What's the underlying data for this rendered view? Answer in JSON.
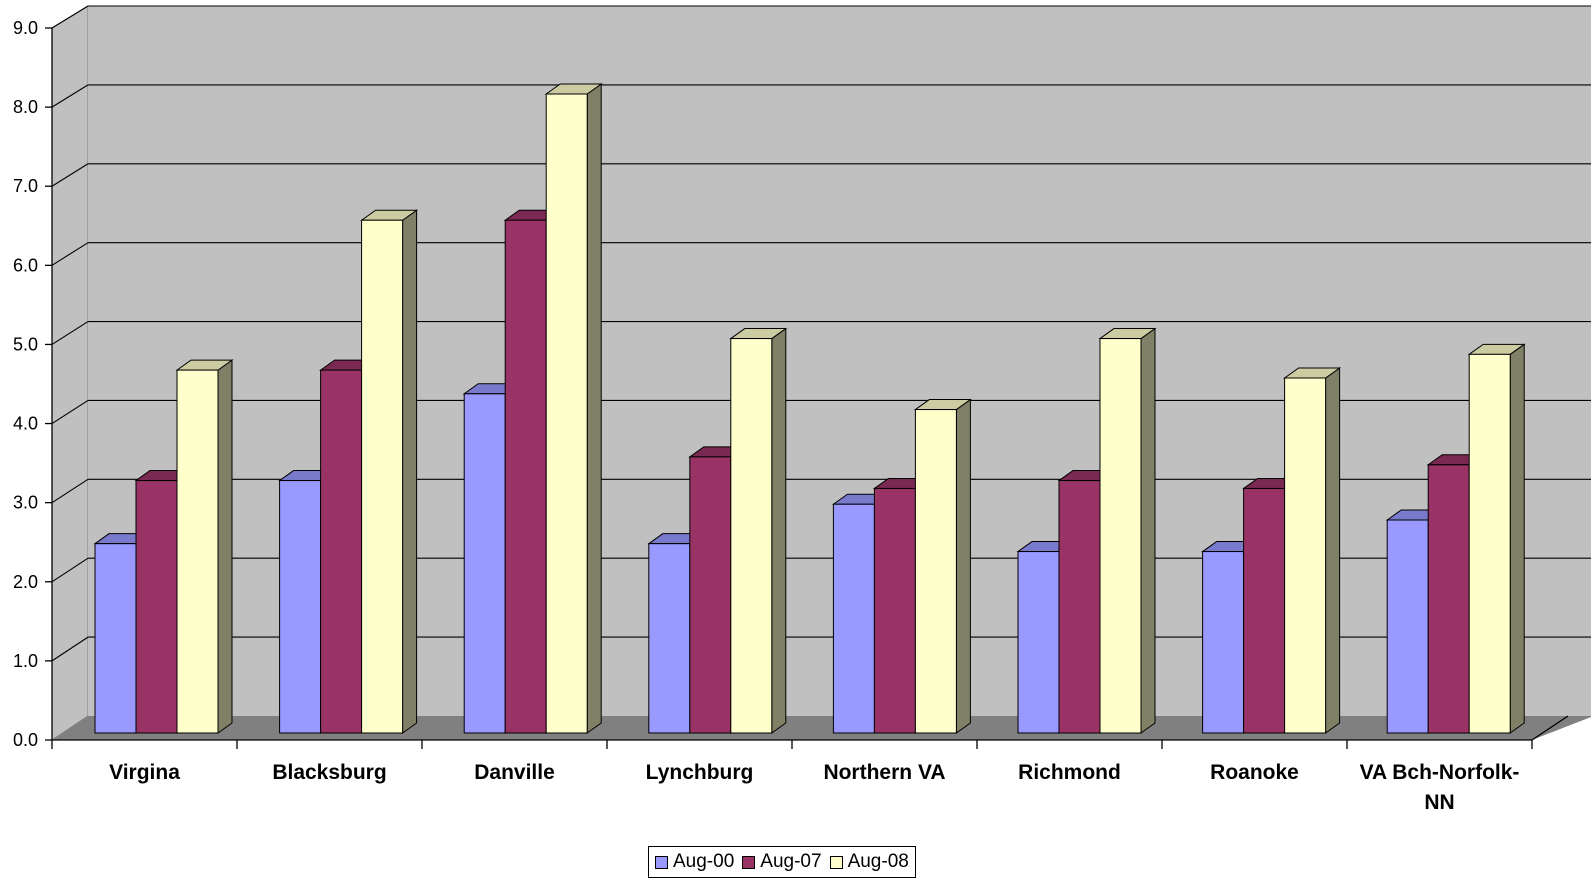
{
  "chart_data": {
    "type": "bar",
    "style": "3d-clustered-column",
    "title": "",
    "xlabel": "",
    "ylabel": "",
    "ylim": [
      0,
      9
    ],
    "yticks": [
      "0.0",
      "1.0",
      "2.0",
      "3.0",
      "4.0",
      "5.0",
      "6.0",
      "7.0",
      "8.0",
      "9.0"
    ],
    "grid": true,
    "legend_position": "bottom",
    "categories": [
      "Virgina",
      "Blacksburg",
      "Danville",
      "Lynchburg",
      "Northern VA",
      "Richmond",
      "Roanoke",
      "VA Bch-Norfolk-NN"
    ],
    "series": [
      {
        "name": "Aug-00",
        "color": "#9999ff",
        "values": [
          2.4,
          3.2,
          4.3,
          2.4,
          2.9,
          2.3,
          2.3,
          2.7
        ]
      },
      {
        "name": "Aug-07",
        "color": "#993366",
        "values": [
          3.2,
          4.6,
          6.5,
          3.5,
          3.1,
          3.2,
          3.1,
          3.4
        ]
      },
      {
        "name": "Aug-08",
        "color": "#ffffcc",
        "values": [
          4.6,
          6.5,
          8.1,
          5.0,
          4.1,
          5.0,
          4.5,
          4.8
        ]
      }
    ]
  }
}
